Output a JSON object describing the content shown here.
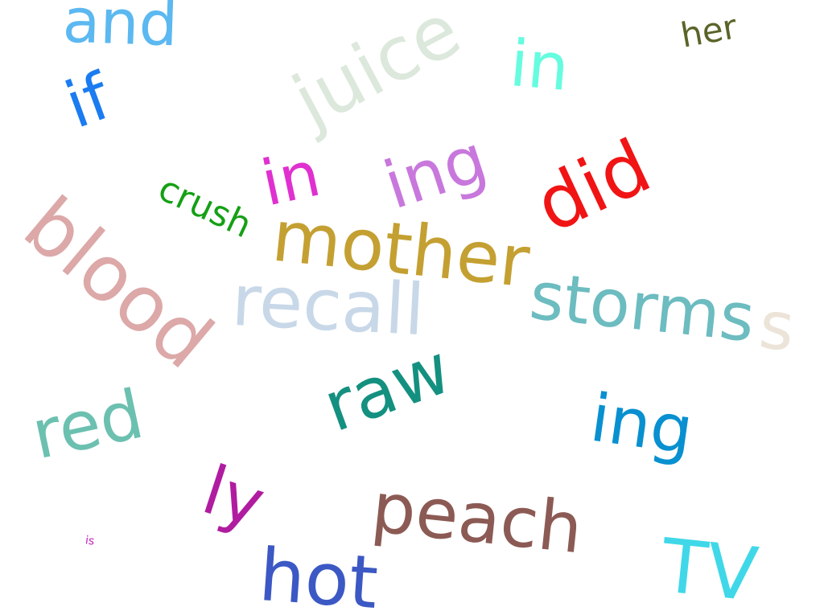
{
  "words": [
    {
      "text": "and",
      "color": "#5cb8f0"
    },
    {
      "text": "if",
      "color": "#1a7cf0"
    },
    {
      "text": "juice",
      "color": "#dce8dc"
    },
    {
      "text": "in",
      "color": "#66fce0"
    },
    {
      "text": "her",
      "color": "#5a6428"
    },
    {
      "text": "crush",
      "color": "#14a014"
    },
    {
      "text": "in",
      "color": "#e030d0"
    },
    {
      "text": "ing",
      "color": "#c878dc"
    },
    {
      "text": "did",
      "color": "#f01414"
    },
    {
      "text": "blood",
      "color": "#dca8a8"
    },
    {
      "text": "mother",
      "color": "#c4a032"
    },
    {
      "text": "recall",
      "color": "#c8d8e8"
    },
    {
      "text": "storms",
      "color": "#6cbcc0"
    },
    {
      "text": "s",
      "color": "#ece4d8"
    },
    {
      "text": "raw",
      "color": "#149080"
    },
    {
      "text": "red",
      "color": "#6cc0b0"
    },
    {
      "text": "ing",
      "color": "#0890d0"
    },
    {
      "text": "ly",
      "color": "#b01ca0"
    },
    {
      "text": "peach",
      "color": "#8c5a54"
    },
    {
      "text": "is",
      "color": "#c020c0"
    },
    {
      "text": "hot",
      "color": "#3c58c4"
    },
    {
      "text": "TV",
      "color": "#40d8e8"
    }
  ]
}
